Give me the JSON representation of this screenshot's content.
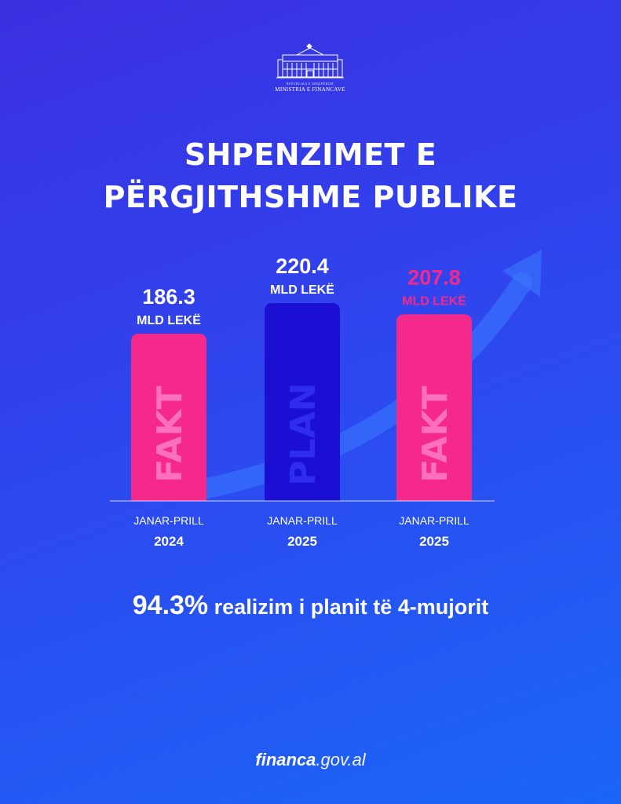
{
  "logo": {
    "top_line": "REPUBLIKA E SHQIPËRISË",
    "ministry": "MINISTRIA E FINANCAVE"
  },
  "title": {
    "line1": "SHPENZIMET E",
    "line2": "PËRGJITHSHME PUBLIKE"
  },
  "colors": {
    "fakt_bar": "#f5288c",
    "plan_bar": "#1c0fd4",
    "highlight_text": "#f5288c",
    "arrow": "#3a7bff"
  },
  "chart_data": {
    "type": "bar",
    "unit": "MLD LEKË",
    "categories": [
      "JANAR-PRILL 2024",
      "JANAR-PRILL 2025",
      "JANAR-PRILL 2025"
    ],
    "bars": [
      {
        "period": "JANAR-PRILL",
        "year": "2024",
        "kind": "FAKT",
        "value": 186.3,
        "value_label": "186.3",
        "unit_label": "MLD LEKË",
        "highlight": false
      },
      {
        "period": "JANAR-PRILL",
        "year": "2025",
        "kind": "PLAN",
        "value": 220.4,
        "value_label": "220.4",
        "unit_label": "MLD LEKË",
        "highlight": false
      },
      {
        "period": "JANAR-PRILL",
        "year": "2025",
        "kind": "FAKT",
        "value": 207.8,
        "value_label": "207.8",
        "unit_label": "MLD LEKË",
        "highlight": true
      }
    ],
    "ylim": [
      0,
      220.4
    ],
    "grid": false,
    "trend_arrow": "upward, behind bars"
  },
  "note": {
    "percent": "94.3%",
    "text": " realizim i planit të 4-mujorit"
  },
  "footer": {
    "bold": "financa",
    "rest": ".gov.al"
  }
}
